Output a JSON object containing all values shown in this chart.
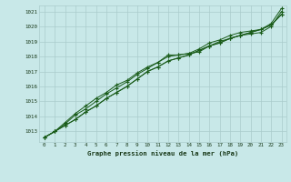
{
  "xlabel": "Graphe pression niveau de la mer (hPa)",
  "xlim": [
    -0.5,
    23.5
  ],
  "ylim": [
    1012.3,
    1021.4
  ],
  "yticks": [
    1013,
    1014,
    1015,
    1016,
    1017,
    1018,
    1019,
    1020,
    1021
  ],
  "xticks": [
    0,
    1,
    2,
    3,
    4,
    5,
    6,
    7,
    8,
    9,
    10,
    11,
    12,
    13,
    14,
    15,
    16,
    17,
    18,
    19,
    20,
    21,
    22,
    23
  ],
  "bg_color": "#c8e8e8",
  "grid_color": "#aacccc",
  "line_color1": "#1a5c1a",
  "line_color2": "#1a5c1a",
  "hours": [
    0,
    1,
    2,
    3,
    4,
    5,
    6,
    7,
    8,
    9,
    10,
    11,
    12,
    13,
    14,
    15,
    16,
    17,
    18,
    19,
    20,
    21,
    22,
    23
  ],
  "series1": [
    1012.6,
    1013.0,
    1013.4,
    1013.8,
    1014.3,
    1014.7,
    1015.2,
    1015.6,
    1016.0,
    1016.5,
    1017.0,
    1017.3,
    1017.7,
    1017.9,
    1018.1,
    1018.4,
    1018.7,
    1018.9,
    1019.2,
    1019.4,
    1019.6,
    1019.8,
    1020.1,
    1020.8
  ],
  "series2": [
    1012.6,
    1013.0,
    1013.4,
    1013.8,
    1014.3,
    1014.7,
    1015.2,
    1015.6,
    1016.0,
    1016.5,
    1017.0,
    1017.3,
    1017.7,
    1017.9,
    1018.1,
    1018.4,
    1018.7,
    1018.9,
    1019.2,
    1019.4,
    1019.6,
    1019.8,
    1020.1,
    1020.8
  ],
  "series3": [
    1012.6,
    1013.0,
    1013.5,
    1014.1,
    1014.5,
    1015.0,
    1015.5,
    1015.9,
    1016.3,
    1016.8,
    1017.2,
    1017.6,
    1018.1,
    1018.1,
    1018.2,
    1018.3,
    1018.7,
    1019.0,
    1019.2,
    1019.4,
    1019.5,
    1019.6,
    1020.0,
    1021.0
  ],
  "series4": [
    1012.6,
    1013.0,
    1013.6,
    1014.2,
    1014.7,
    1015.2,
    1015.6,
    1016.1,
    1016.4,
    1016.9,
    1017.3,
    1017.6,
    1018.0,
    1018.1,
    1018.2,
    1018.5,
    1018.9,
    1019.1,
    1019.4,
    1019.6,
    1019.7,
    1019.8,
    1020.2,
    1021.2
  ]
}
